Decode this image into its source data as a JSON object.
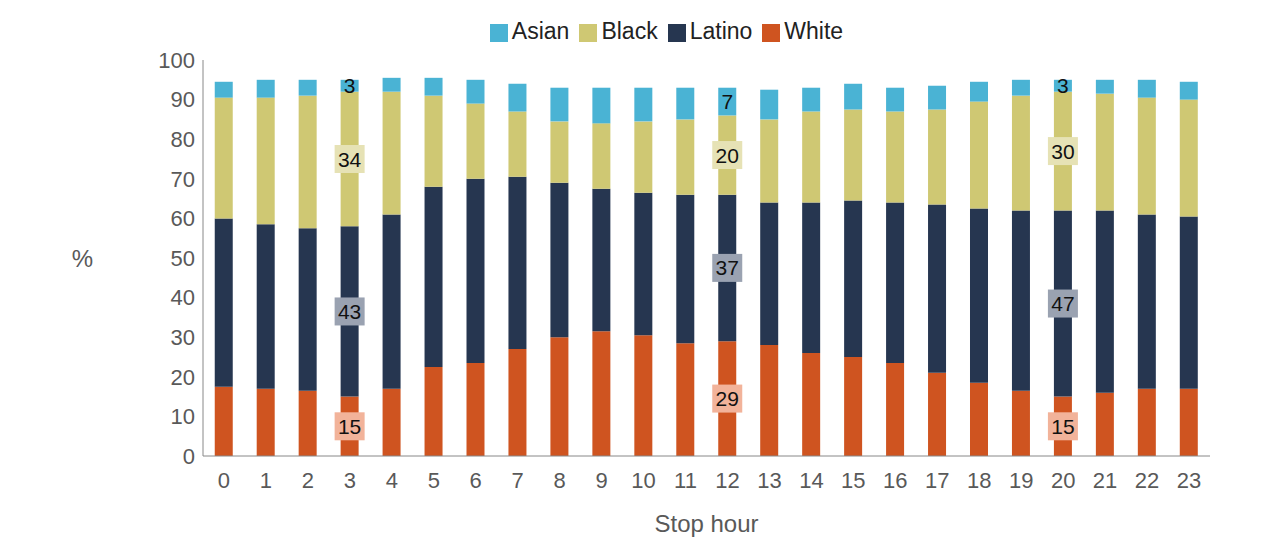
{
  "chart_data": {
    "type": "bar",
    "stacked": true,
    "grid": false,
    "legend": "top",
    "x_label": "Stop hour",
    "y_label": "%",
    "categories": [
      "0",
      "1",
      "2",
      "3",
      "4",
      "5",
      "6",
      "7",
      "8",
      "9",
      "10",
      "11",
      "12",
      "13",
      "14",
      "15",
      "16",
      "17",
      "18",
      "19",
      "20",
      "21",
      "22",
      "23"
    ],
    "ylim": [
      0,
      100
    ],
    "yticks": [
      0,
      10,
      20,
      30,
      40,
      50,
      60,
      70,
      80,
      90,
      100
    ],
    "series": [
      {
        "name": "White",
        "color": "#cf5420",
        "values": [
          17.5,
          17,
          16.5,
          15,
          17,
          22.5,
          23.5,
          27,
          30,
          31.5,
          30.5,
          28.5,
          29,
          28,
          26,
          25,
          23.5,
          21,
          18.5,
          16.5,
          15,
          16,
          17,
          17
        ],
        "value_labels": [
          null,
          null,
          null,
          "15",
          null,
          null,
          null,
          null,
          null,
          null,
          null,
          null,
          "29",
          null,
          null,
          null,
          null,
          null,
          null,
          null,
          "15",
          null,
          null,
          null
        ]
      },
      {
        "name": "Latino",
        "color": "#263650",
        "values": [
          42.5,
          41.5,
          41,
          43,
          44,
          45.5,
          46.5,
          43.5,
          39,
          36,
          36,
          37.5,
          37,
          36,
          38,
          39.5,
          40.5,
          42.5,
          44,
          45.5,
          47,
          46,
          44,
          43.5
        ],
        "value_labels": [
          null,
          null,
          null,
          "43",
          null,
          null,
          null,
          null,
          null,
          null,
          null,
          null,
          "37",
          null,
          null,
          null,
          null,
          null,
          null,
          null,
          "47",
          null,
          null,
          null
        ]
      },
      {
        "name": "Black",
        "color": "#cfc873",
        "values": [
          30.5,
          32,
          33.5,
          34,
          31,
          23,
          19,
          16.5,
          15.5,
          16.5,
          18,
          19,
          20,
          21,
          23,
          23,
          23,
          24,
          27,
          29,
          30,
          29.5,
          29.5,
          29.5
        ],
        "value_labels": [
          null,
          null,
          null,
          "34",
          null,
          null,
          null,
          null,
          null,
          null,
          null,
          null,
          "20",
          null,
          null,
          null,
          null,
          null,
          null,
          null,
          "30",
          null,
          null,
          null
        ]
      },
      {
        "name": "Asian",
        "color": "#4ab3d4",
        "values": [
          4,
          4.5,
          4,
          3,
          3.5,
          4.5,
          6,
          7,
          8.5,
          9,
          8.5,
          8,
          7,
          7.5,
          6,
          6.5,
          6,
          6,
          5,
          4,
          3,
          3.5,
          4.5,
          4.5
        ],
        "value_labels": [
          null,
          null,
          null,
          "3",
          null,
          null,
          null,
          null,
          null,
          null,
          null,
          null,
          "7",
          null,
          null,
          null,
          null,
          null,
          null,
          null,
          "3",
          null,
          null,
          null
        ]
      }
    ]
  }
}
